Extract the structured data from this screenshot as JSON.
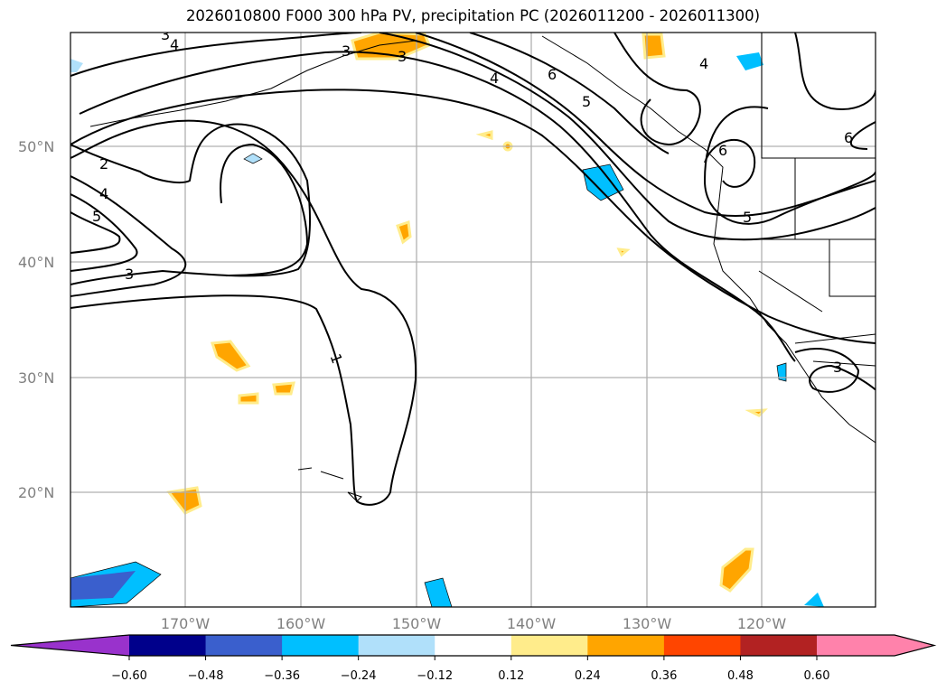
{
  "title": "2026010800 F000 300 hPa PV, precipitation PC (2026011200 - 2026011300)",
  "lat_labels": [
    "50°N",
    "40°N",
    "30°N",
    "20°N"
  ],
  "lon_labels": [
    "170°W",
    "160°W",
    "150°W",
    "140°W",
    "130°W",
    "120°W"
  ],
  "contour_labels": [
    "3",
    "4",
    "3",
    "2",
    "4",
    "5",
    "3",
    "1",
    "4",
    "6",
    "5",
    "6",
    "5",
    "3",
    "4",
    "6",
    "3"
  ],
  "colorbar": {
    "ticks": [
      "−0.60",
      "−0.48",
      "−0.36",
      "−0.24",
      "−0.12",
      "0.12",
      "0.24",
      "0.36",
      "0.48",
      "0.60"
    ],
    "colors": [
      "#9932cc",
      "#00008b",
      "#3a5fcd",
      "#00bfff",
      "#b0e0fa",
      "#ffffff",
      "#ffec8b",
      "#ffa500",
      "#ff4500",
      "#b22222",
      "#ff82ab"
    ]
  }
}
